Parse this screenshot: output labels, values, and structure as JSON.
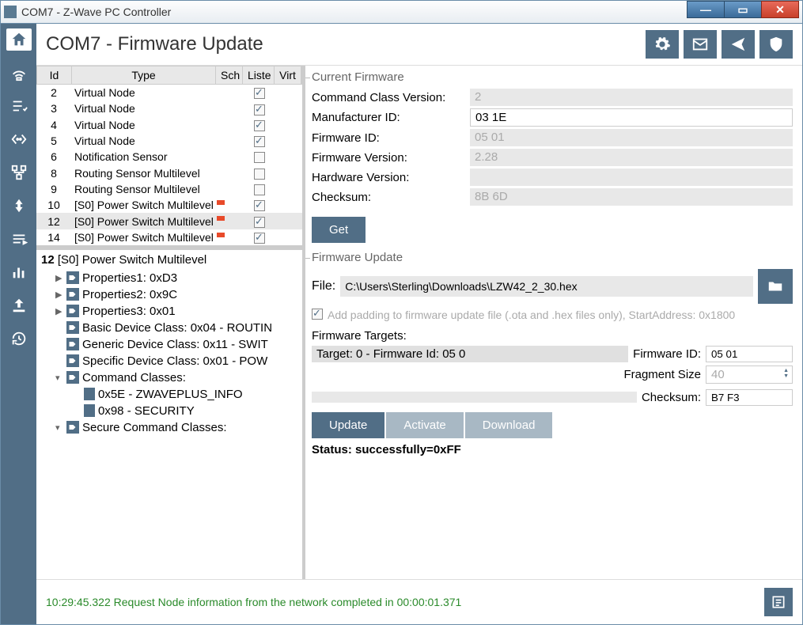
{
  "window": {
    "title": "COM7 - Z-Wave PC Controller"
  },
  "header": {
    "title": "COM7 - Firmware Update"
  },
  "colors": {
    "accent": "#516e86",
    "bg": "#ffffff",
    "muted": "#e8e8e8",
    "text": "#333333",
    "log": "#2a8a2a"
  },
  "nodetable": {
    "columns": {
      "id": "Id",
      "type": "Type",
      "sch": "Sch",
      "list": "Liste",
      "virt": "Virt"
    },
    "rows": [
      {
        "id": "2",
        "type": "Virtual Node",
        "listening": true,
        "selected": false
      },
      {
        "id": "3",
        "type": "Virtual Node",
        "listening": true,
        "selected": false
      },
      {
        "id": "4",
        "type": "Virtual Node",
        "listening": true,
        "selected": false
      },
      {
        "id": "5",
        "type": "Virtual Node",
        "listening": true,
        "selected": false
      },
      {
        "id": "6",
        "type": "Notification Sensor",
        "listening": false,
        "selected": false
      },
      {
        "id": "8",
        "type": "Routing Sensor Multilevel",
        "listening": false,
        "selected": false
      },
      {
        "id": "9",
        "type": "Routing Sensor Multilevel",
        "listening": false,
        "selected": false
      },
      {
        "id": "10",
        "type": "[S0] Power Switch Multilevel",
        "listening": true,
        "selected": false,
        "marker": true
      },
      {
        "id": "12",
        "type": "[S0] Power Switch Multilevel",
        "listening": true,
        "selected": true,
        "marker": true
      },
      {
        "id": "14",
        "type": "[S0] Power Switch Multilevel",
        "listening": true,
        "selected": false,
        "marker": true
      }
    ]
  },
  "nodedetail": {
    "id": "12",
    "name": "[S0] Power Switch Multilevel",
    "items": [
      {
        "kind": "tag",
        "indent": 1,
        "arrow": "▶",
        "text": "Properties1: 0xD3"
      },
      {
        "kind": "tag",
        "indent": 1,
        "arrow": "▶",
        "text": "Properties2: 0x9C"
      },
      {
        "kind": "tag",
        "indent": 1,
        "arrow": "▶",
        "text": "Properties3: 0x01"
      },
      {
        "kind": "tag",
        "indent": 1,
        "arrow": "",
        "text": "Basic Device Class: 0x04 - ROUTIN"
      },
      {
        "kind": "tag",
        "indent": 1,
        "arrow": "",
        "text": "Generic Device Class: 0x11 - SWIT"
      },
      {
        "kind": "tag",
        "indent": 1,
        "arrow": "",
        "text": "Specific Device Class: 0x01 - POW"
      },
      {
        "kind": "tag",
        "indent": 1,
        "arrow": "▾",
        "text": "Command Classes:"
      },
      {
        "kind": "doc",
        "indent": 2,
        "arrow": "",
        "text": "0x5E - ZWAVEPLUS_INFO"
      },
      {
        "kind": "doc",
        "indent": 2,
        "arrow": "",
        "text": "0x98 - SECURITY"
      },
      {
        "kind": "tag",
        "indent": 1,
        "arrow": "▾",
        "text": "Secure Command Classes:"
      }
    ]
  },
  "currentFirmware": {
    "legend": "Current Firmware",
    "labels": {
      "ccv": "Command Class Version:",
      "mid": "Manufacturer ID:",
      "fid": "Firmware ID:",
      "fver": "Firmware Version:",
      "hver": "Hardware Version:",
      "chk": "Checksum:"
    },
    "values": {
      "ccv": "2",
      "mid": "03 1E",
      "fid": "05 01",
      "fver": "2.28",
      "hver": "",
      "chk": "8B 6D"
    },
    "getButton": "Get"
  },
  "firmwareUpdate": {
    "legend": "Firmware Update",
    "fileLabel": "File:",
    "filePath": "C:\\Users\\Sterling\\Downloads\\LZW42_2_30.hex",
    "paddingText": "Add padding to firmware update file (.ota and .hex files only), StartAddress: 0x1800",
    "targetsLabel": "Firmware Targets:",
    "targetSelected": "Target: 0 - Firmware Id: 05 0",
    "fidLabel": "Firmware ID:",
    "fidValue": "05 01",
    "fragLabel": "Fragment Size",
    "fragValue": "40",
    "chkLabel": "Checksum:",
    "chkValue": "B7 F3",
    "buttons": {
      "update": "Update",
      "activate": "Activate",
      "download": "Download"
    },
    "status": "Status: successfully=0xFF"
  },
  "footer": {
    "log": "10:29:45.322 Request Node information from the network completed in 00:00:01.371"
  }
}
